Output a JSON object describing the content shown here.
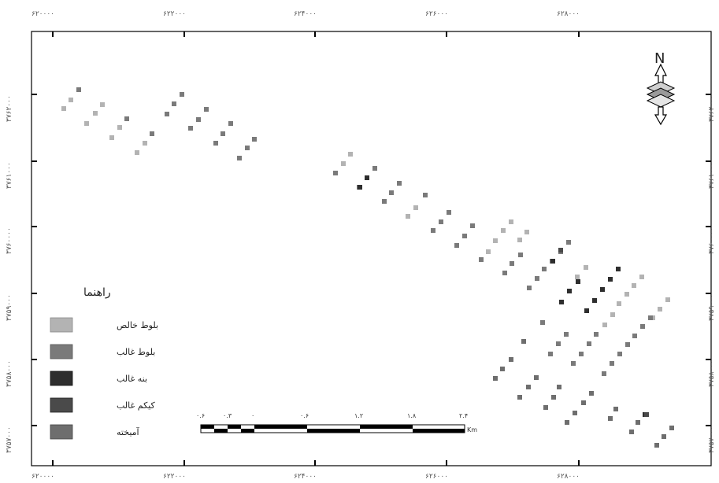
{
  "map": {
    "x_ticks": [
      "۶۲۰۰۰۰",
      "۶۲۲۰۰۰",
      "۶۲۴۰۰۰",
      "۶۲۶۰۰۰",
      "۶۲۸۰۰۰"
    ],
    "y_ticks": [
      "۳۷۶۲۰۰۰",
      "۳۷۶۱۰۰۰",
      "۳۷۶۰۰۰۰",
      "۳۷۵۹۰۰۰",
      "۳۷۵۸۰۰۰",
      "۳۷۵۷۰۰۰"
    ],
    "north": "N",
    "legend": {
      "title": "راهنما",
      "items": [
        {
          "label": "بلوط خالص",
          "color": "#b3b3b3"
        },
        {
          "label": "بلوط غالب",
          "color": "#7a7a7a"
        },
        {
          "label": "بنه غالب",
          "color": "#2e2e2e"
        },
        {
          "label": "کیکم غالب",
          "color": "#4a4a4a"
        },
        {
          "label": "آمیخته",
          "color": "#6e6e6e"
        }
      ]
    },
    "scale_bar": {
      "labels": [
        "۰.۶",
        "۰.۳",
        "۰",
        "۰.۶",
        "۱.۲",
        "۱.۸",
        "۲.۴"
      ],
      "unit": "Km"
    },
    "plots": [
      {
        "cls": 0,
        "pts": [
          [
            81,
            138
          ],
          [
            90,
            127
          ],
          [
            110,
            157
          ],
          [
            121,
            144
          ],
          [
            130,
            133
          ],
          [
            142,
            175
          ],
          [
            152,
            162
          ],
          [
            174,
            194
          ],
          [
            184,
            182
          ]
        ]
      },
      {
        "cls": 1,
        "pts": [
          [
            100,
            114
          ],
          [
            161,
            151
          ],
          [
            193,
            170
          ],
          [
            212,
            145
          ],
          [
            221,
            132
          ],
          [
            231,
            120
          ],
          [
            242,
            163
          ],
          [
            252,
            152
          ],
          [
            262,
            139
          ],
          [
            274,
            182
          ],
          [
            283,
            170
          ],
          [
            293,
            157
          ],
          [
            304,
            201
          ],
          [
            314,
            188
          ],
          [
            323,
            177
          ]
        ]
      },
      {
        "cls": 0,
        "pts": [
          [
            436,
            208
          ],
          [
            445,
            196
          ],
          [
            518,
            275
          ],
          [
            528,
            264
          ],
          [
            620,
            320
          ],
          [
            629,
            306
          ],
          [
            639,
            293
          ],
          [
            649,
            282
          ],
          [
            660,
            305
          ],
          [
            669,
            295
          ],
          [
            744,
            340
          ],
          [
            733,
            352
          ],
          [
            768,
            413
          ],
          [
            778,
            400
          ],
          [
            786,
            386
          ],
          [
            796,
            374
          ],
          [
            805,
            363
          ],
          [
            815,
            352
          ],
          [
            829,
            404
          ],
          [
            838,
            393
          ],
          [
            848,
            381
          ]
        ]
      },
      {
        "cls": 1,
        "pts": [
          [
            426,
            220
          ],
          [
            456,
            238
          ],
          [
            466,
            226
          ],
          [
            476,
            214
          ],
          [
            488,
            256
          ],
          [
            497,
            245
          ],
          [
            507,
            233
          ],
          [
            540,
            248
          ],
          [
            550,
            293
          ],
          [
            560,
            282
          ],
          [
            570,
            270
          ],
          [
            580,
            312
          ],
          [
            590,
            300
          ],
          [
            600,
            287
          ],
          [
            611,
            330
          ],
          [
            641,
            347
          ],
          [
            650,
            335
          ],
          [
            661,
            324
          ],
          [
            672,
            366
          ],
          [
            682,
            354
          ],
          [
            691,
            342
          ],
          [
            701,
            332
          ],
          [
            712,
            320
          ],
          [
            722,
            308
          ],
          [
            689,
            410
          ],
          [
            699,
            450
          ],
          [
            709,
            437
          ],
          [
            719,
            425
          ],
          [
            728,
            462
          ],
          [
            738,
            450
          ],
          [
            748,
            437
          ],
          [
            757,
            425
          ],
          [
            767,
            475
          ],
          [
            777,
            462
          ],
          [
            787,
            450
          ],
          [
            797,
            438
          ],
          [
            806,
            427
          ],
          [
            816,
            415
          ],
          [
            826,
            404
          ]
        ]
      },
      {
        "cls": 2,
        "pts": [
          [
            457,
            238
          ],
          [
            466,
            226
          ],
          [
            702,
            332
          ],
          [
            713,
            384
          ],
          [
            723,
            370
          ],
          [
            734,
            358
          ],
          [
            745,
            395
          ],
          [
            755,
            382
          ],
          [
            765,
            368
          ],
          [
            775,
            355
          ],
          [
            785,
            342
          ],
          [
            819,
            527
          ]
        ]
      },
      {
        "cls": 3,
        "pts": [
          [
            821,
            527
          ],
          [
            712,
            318
          ]
        ]
      },
      {
        "cls": 4,
        "pts": [
          [
            629,
            481
          ],
          [
            638,
            469
          ],
          [
            649,
            457
          ],
          [
            660,
            505
          ],
          [
            671,
            492
          ],
          [
            681,
            480
          ],
          [
            693,
            518
          ],
          [
            703,
            505
          ],
          [
            710,
            492
          ],
          [
            720,
            537
          ],
          [
            730,
            525
          ],
          [
            741,
            512
          ],
          [
            751,
            500
          ],
          [
            775,
            532
          ],
          [
            782,
            520
          ],
          [
            802,
            549
          ],
          [
            810,
            537
          ],
          [
            834,
            566
          ],
          [
            843,
            555
          ],
          [
            853,
            544
          ],
          [
            665,
            434
          ]
        ]
      }
    ]
  }
}
